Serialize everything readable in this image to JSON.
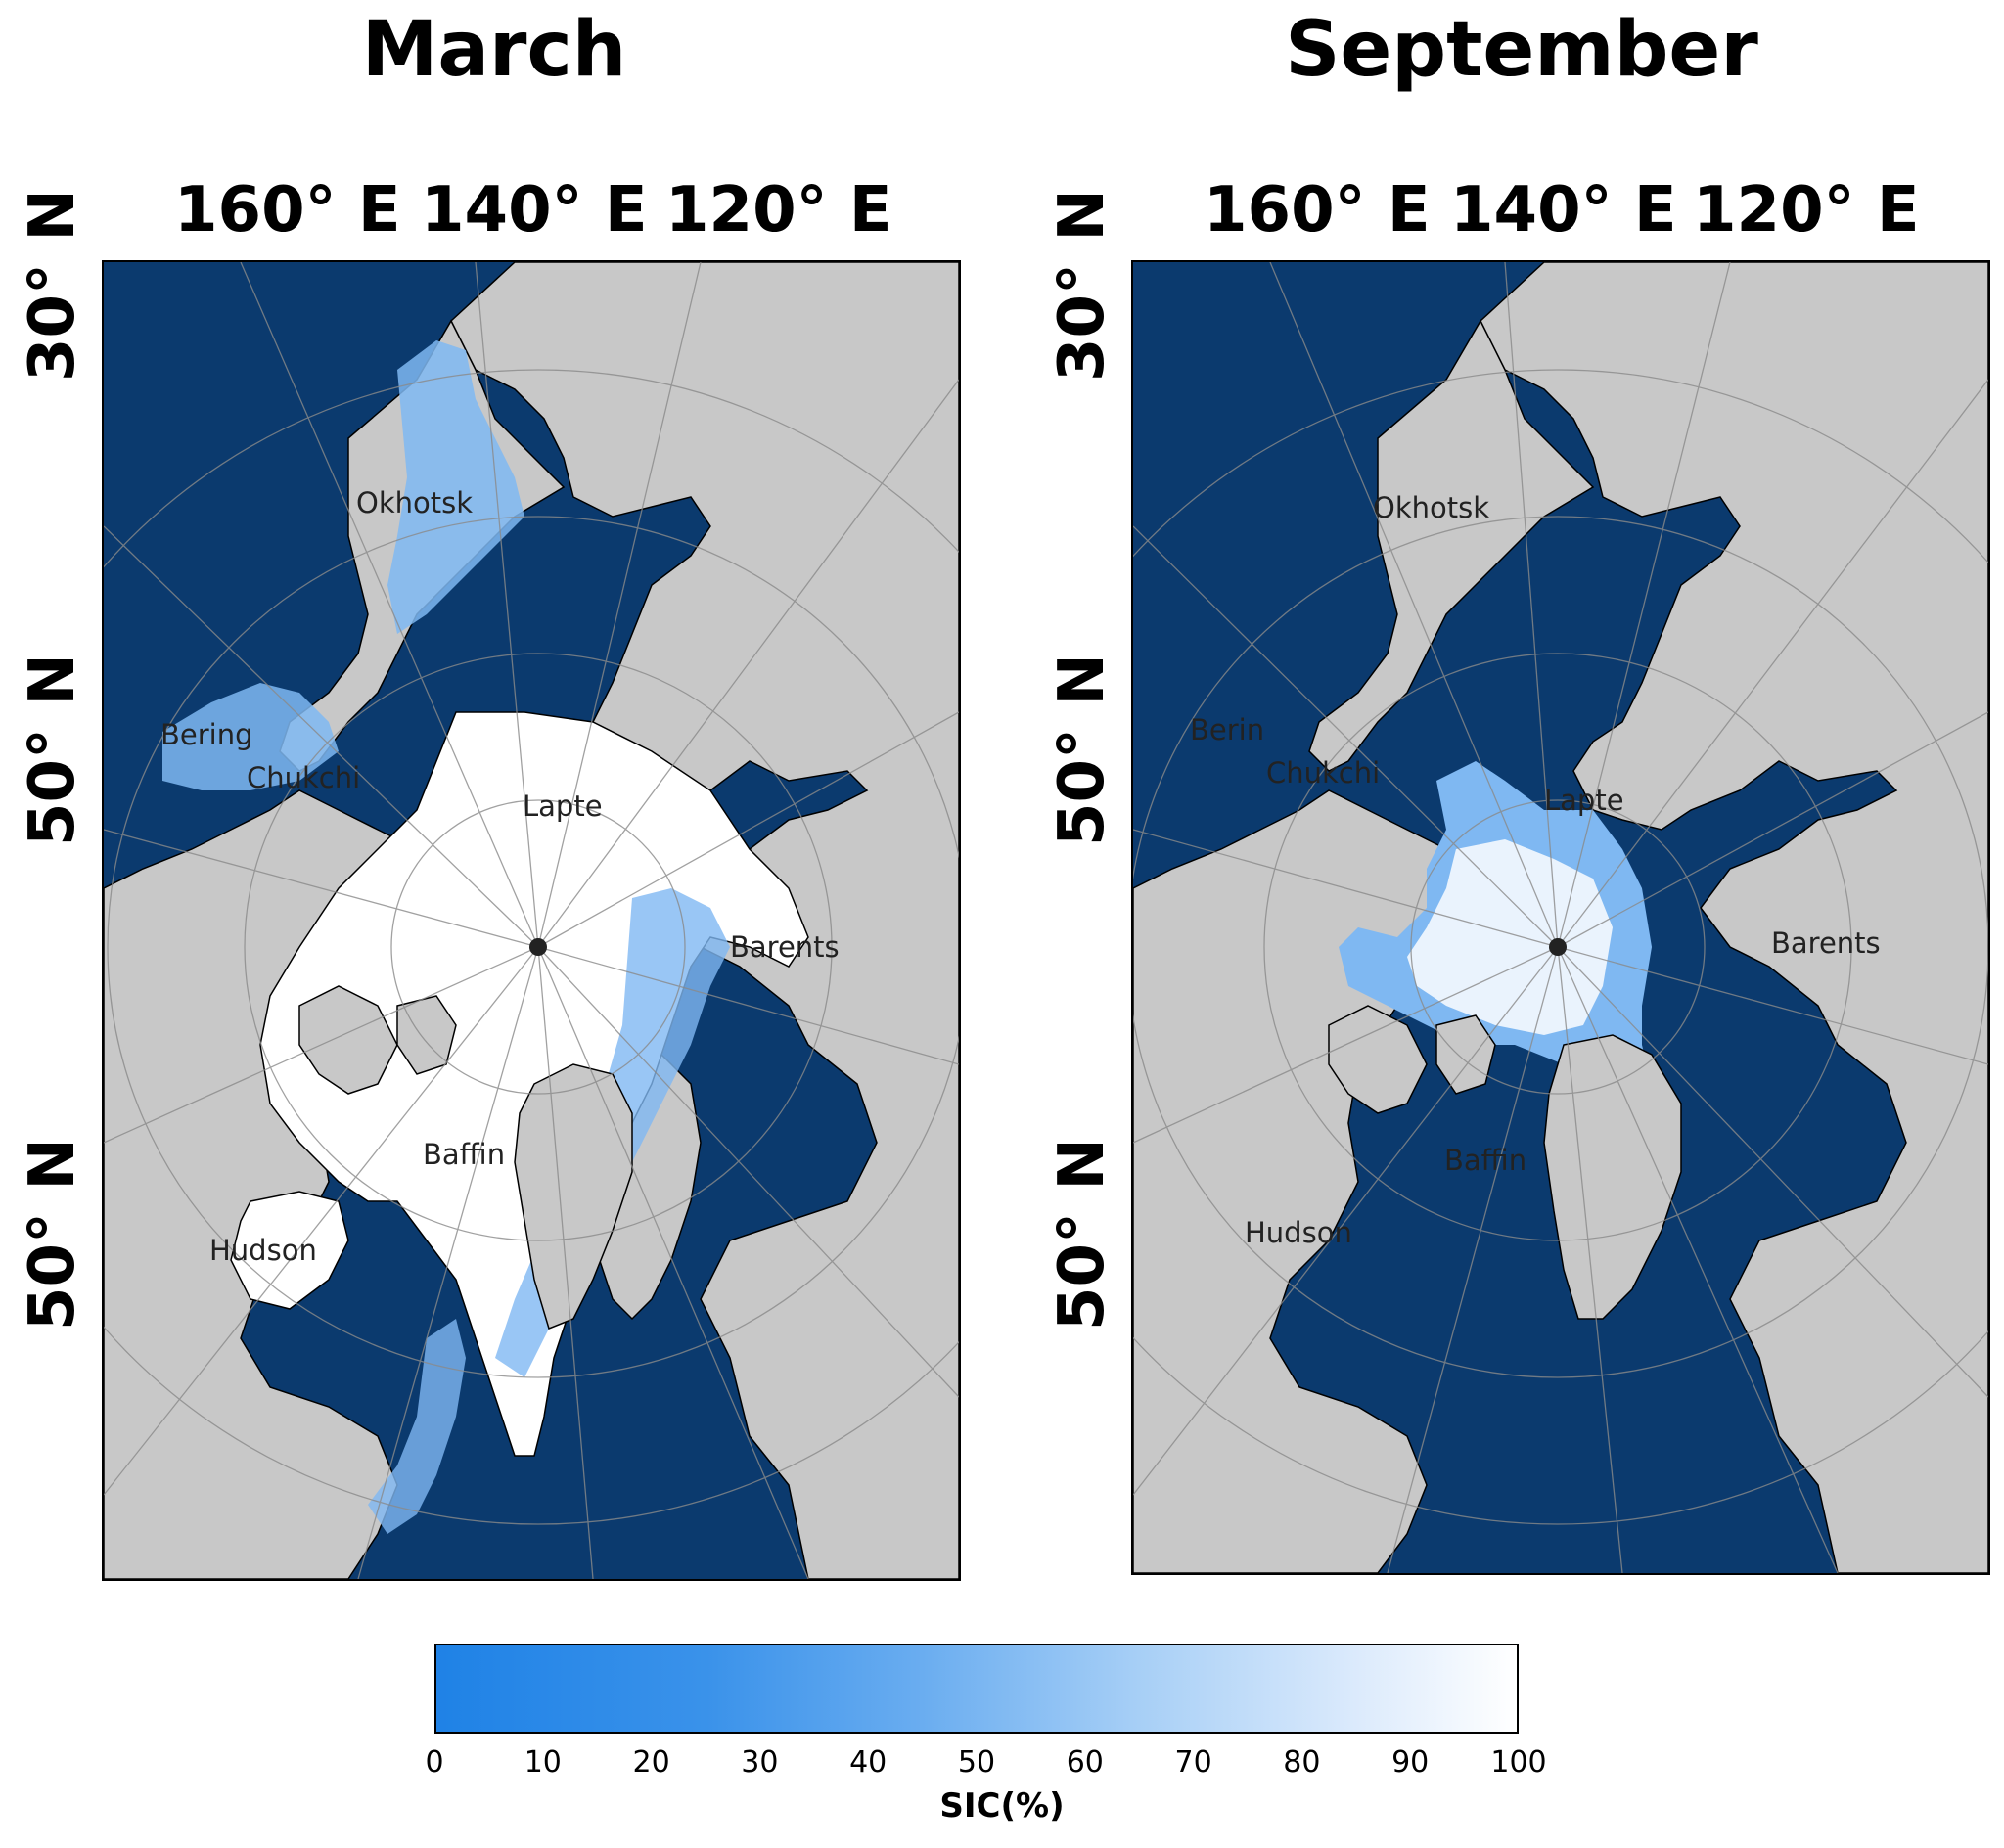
{
  "panels": [
    {
      "title": "March",
      "lon_labels": [
        "160° E",
        "140° E",
        "120° E"
      ],
      "lat_labels": [
        "30° N",
        "50° N",
        "50° N"
      ],
      "regions": [
        "Okhotsk",
        "Bering",
        "Chukchi",
        "Lapte",
        "Barents",
        "Baffin",
        "Hudson"
      ]
    },
    {
      "title": "September",
      "lon_labels": [
        "160° E",
        "140° E",
        "120° E"
      ],
      "lat_labels": [
        "30° N",
        "50° N",
        "50° N"
      ],
      "regions": [
        "Okhotsk",
        "Berin",
        "Chukchi",
        "Lapte",
        "Barents",
        "Baffin",
        "Hudson"
      ]
    }
  ],
  "colorbar": {
    "label": "SIC(%)",
    "ticks": [
      "0",
      "10",
      "20",
      "30",
      "40",
      "50",
      "60",
      "70",
      "80",
      "90",
      "100"
    ],
    "min": 0,
    "max": 100,
    "colors": [
      "#1f82e6",
      "#ffffff"
    ]
  },
  "colors": {
    "ocean": "#0b3a6e",
    "land": "#c8c8c8",
    "ice_full": "#ffffff",
    "ice_mid": "#7fb8f2",
    "grid": "#8a8a8a"
  }
}
